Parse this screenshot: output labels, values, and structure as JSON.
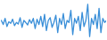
{
  "chart_data": {
    "type": "line",
    "x": [
      1,
      2,
      3,
      4,
      5,
      6,
      7,
      8,
      9,
      10,
      11,
      12,
      13,
      14,
      15,
      16,
      17,
      18,
      19,
      20,
      21,
      22,
      23,
      24,
      25,
      26,
      27,
      28,
      29,
      30,
      31,
      32,
      33,
      34,
      35,
      36,
      37,
      38,
      39,
      40,
      41,
      42,
      43,
      44,
      45,
      46,
      47,
      48,
      49,
      50,
      51,
      52,
      53,
      54,
      55,
      56,
      57
    ],
    "values": [
      55,
      45,
      60,
      40,
      52,
      48,
      58,
      42,
      50,
      46,
      62,
      38,
      55,
      50,
      44,
      57,
      48,
      60,
      35,
      58,
      45,
      65,
      40,
      70,
      30,
      55,
      62,
      38,
      50,
      68,
      25,
      60,
      45,
      72,
      35,
      55,
      50,
      80,
      20,
      60,
      48,
      65,
      30,
      75,
      40,
      55,
      95,
      15,
      60,
      45,
      70,
      35,
      85,
      25,
      60,
      50,
      55
    ],
    "color": "#3a8fd8",
    "xlim": [
      1,
      57
    ],
    "ylim": [
      10,
      100
    ],
    "tick_labels": false,
    "grid": false
  }
}
